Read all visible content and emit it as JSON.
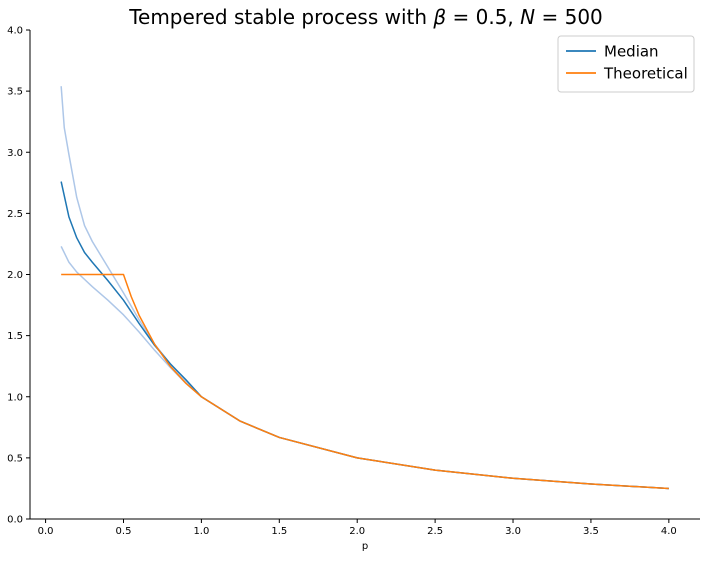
{
  "chart_data": {
    "type": "line",
    "title": "Tempered stable process with β = 0.5, N = 500",
    "title_parts": {
      "prefix": "Tempered stable process with ",
      "beta_symbol": "β",
      "beta_eq": " = 0.5, ",
      "n_symbol": "N",
      "n_eq": " = 500"
    },
    "xlabel": "p",
    "ylabel": "",
    "xlim": [
      -0.1,
      4.2
    ],
    "ylim": [
      0,
      4.0
    ],
    "xticks": [
      0.0,
      0.5,
      1.0,
      1.5,
      2.0,
      2.5,
      3.0,
      3.5,
      4.0
    ],
    "xtick_labels": [
      "0.0",
      "0.5",
      "1.0",
      "1.5",
      "2.0",
      "2.5",
      "3.0",
      "3.5",
      "4.0"
    ],
    "yticks": [
      0.0,
      0.5,
      1.0,
      1.5,
      2.0,
      2.5,
      3.0,
      3.5,
      4.0
    ],
    "ytick_labels": [
      "0.0",
      "0.5",
      "1.0",
      "1.5",
      "2.0",
      "2.5",
      "3.0",
      "3.5",
      "4.0"
    ],
    "grid": false,
    "legend_position": "top-right",
    "series": [
      {
        "name": "Median",
        "color": "#1f77b4",
        "x": [
          0.1,
          0.15,
          0.2,
          0.25,
          0.3,
          0.4,
          0.5,
          0.6,
          0.7,
          0.8,
          0.9,
          1.0,
          1.25,
          1.5,
          2.0,
          2.5,
          3.0,
          3.5,
          4.0
        ],
        "y": [
          2.76,
          2.47,
          2.3,
          2.18,
          2.1,
          1.95,
          1.79,
          1.6,
          1.42,
          1.27,
          1.14,
          1.0,
          0.8,
          0.667,
          0.5,
          0.4,
          0.333,
          0.286,
          0.25
        ]
      },
      {
        "name": "Theoretical",
        "color": "#ff7f0e",
        "x": [
          0.1,
          0.2,
          0.3,
          0.4,
          0.5,
          0.55,
          0.6,
          0.7,
          0.8,
          0.9,
          1.0,
          1.25,
          1.5,
          2.0,
          2.5,
          3.0,
          3.5,
          4.0
        ],
        "y": [
          2.0,
          2.0,
          2.0,
          2.0,
          2.0,
          1.818,
          1.667,
          1.429,
          1.25,
          1.111,
          1.0,
          0.8,
          0.667,
          0.5,
          0.4,
          0.333,
          0.286,
          0.25
        ]
      },
      {
        "color": "#aec7e8",
        "x": [
          0.1,
          0.12,
          0.15,
          0.2,
          0.25,
          0.3,
          0.4,
          0.5,
          0.6,
          0.7,
          0.8,
          0.9,
          1.0,
          1.25,
          1.5,
          2.0,
          2.5,
          3.0,
          3.5,
          4.0
        ],
        "y": [
          3.54,
          3.2,
          2.98,
          2.63,
          2.4,
          2.27,
          2.06,
          1.85,
          1.63,
          1.43,
          1.27,
          1.13,
          1.0,
          0.8,
          0.667,
          0.5,
          0.4,
          0.333,
          0.286,
          0.25
        ]
      },
      {
        "color": "#aec7e8",
        "x": [
          0.1,
          0.15,
          0.2,
          0.25,
          0.3,
          0.4,
          0.5,
          0.6,
          0.7,
          0.8,
          0.9,
          1.0,
          1.25,
          1.5,
          2.0,
          2.5,
          3.0,
          3.5,
          4.0
        ],
        "y": [
          2.23,
          2.1,
          2.02,
          1.96,
          1.9,
          1.79,
          1.67,
          1.53,
          1.38,
          1.24,
          1.11,
          1.0,
          0.8,
          0.667,
          0.5,
          0.4,
          0.333,
          0.286,
          0.25
        ]
      }
    ]
  }
}
